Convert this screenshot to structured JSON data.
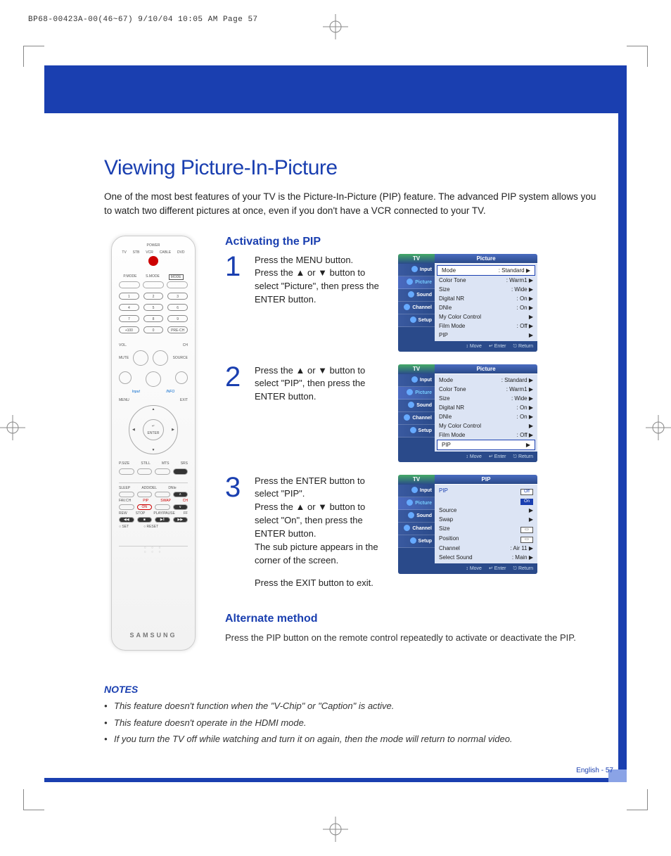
{
  "header_line": "BP68-00423A-00(46~67)  9/10/04  10:05 AM  Page 57",
  "title": "Viewing Picture-In-Picture",
  "intro": "One of the most best features of your TV is the Picture-In-Picture (PIP) feature. The advanced PIP system allows you to watch two different pictures at once, even if you don't have a VCR connected to your TV.",
  "section1_title": "Activating the PIP",
  "steps": [
    {
      "n": "1",
      "text": "Press the MENU button.\nPress the ▲ or ▼ button to select \"Picture\", then press the ENTER button."
    },
    {
      "n": "2",
      "text": "Press the ▲ or ▼ button to select \"PIP\", then press the ENTER button."
    },
    {
      "n": "3",
      "text": "Press the ENTER button to select \"PIP\".\nPress the ▲ or ▼ button to select \"On\", then press the ENTER button.\nThe sub picture appears in the corner of the screen.",
      "exit": "Press the EXIT button to exit."
    }
  ],
  "section2_title": "Alternate method",
  "alt_text": "Press the PIP button on the remote control repeatedly to activate or deactivate the PIP.",
  "notes_title": "NOTES",
  "notes": [
    "This feature doesn't function when the \"V-Chip\" or \"Caption\" is active.",
    "This feature doesn't operate in the HDMI mode.",
    "If you turn the TV off while watching and turn it on again, then the mode will return to normal video."
  ],
  "page_num": "English - 57",
  "osd_tabs": [
    "Input",
    "Picture",
    "Sound",
    "Channel",
    "Setup"
  ],
  "osd_foot": {
    "move": "Move",
    "enter": "Enter",
    "return": "Return"
  },
  "osd1": {
    "tv": "TV",
    "title": "Picture",
    "active_tab_index": 1,
    "items": [
      {
        "label": "Mode",
        "value": ": Standard",
        "sel": true
      },
      {
        "label": "Color Tone",
        "value": ": Warm1"
      },
      {
        "label": "Size",
        "value": ": Wide"
      },
      {
        "label": "Digital NR",
        "value": ": On"
      },
      {
        "label": "DNIe",
        "value": ": On"
      },
      {
        "label": "My Color Control",
        "value": ""
      },
      {
        "label": "Film Mode",
        "value": ": Off"
      },
      {
        "label": "PIP",
        "value": ""
      }
    ]
  },
  "osd2": {
    "tv": "TV",
    "title": "Picture",
    "active_tab_index": 1,
    "items": [
      {
        "label": "Mode",
        "value": ": Standard"
      },
      {
        "label": "Color Tone",
        "value": ": Warm1"
      },
      {
        "label": "Size",
        "value": ": Wide"
      },
      {
        "label": "Digital NR",
        "value": ": On"
      },
      {
        "label": "DNIe",
        "value": ": On"
      },
      {
        "label": "My Color Control",
        "value": ""
      },
      {
        "label": "Film Mode",
        "value": ": Off"
      },
      {
        "label": "PIP",
        "value": "",
        "sel": true
      }
    ]
  },
  "osd3": {
    "tv": "TV",
    "title": "PIP",
    "active_tab_index": 1,
    "items": [
      {
        "label": "PIP",
        "value": "",
        "blue": true,
        "box": "Off"
      },
      {
        "label": "",
        "value": "",
        "box": "On",
        "box_on": true
      },
      {
        "label": "Source",
        "value": ""
      },
      {
        "label": "Swap",
        "value": ""
      },
      {
        "label": "Size",
        "value": "",
        "box": "▭"
      },
      {
        "label": "Position",
        "value": "",
        "box": "▭"
      },
      {
        "label": "Channel",
        "value": ": Air 11"
      },
      {
        "label": "Select Sound",
        "value": ": Main"
      }
    ]
  },
  "remote_brand": "SAMSUNG",
  "remote_labels": {
    "power": "POWER",
    "tv": "TV",
    "stb": "STB",
    "vcr": "VCR",
    "cable": "CABLE",
    "dvd": "DVD",
    "pmode": "P.MODE",
    "smode": "S.MODE",
    "mode": "MODE",
    "plus100": "+100",
    "preCh": "PRE-CH",
    "vol": "VOL.",
    "ch": "CH",
    "mute": "MUTE",
    "source": "SOURCE",
    "info": "INFO",
    "menu": "MENU",
    "exit": "EXIT",
    "enter": "ENTER",
    "psize": "P.SIZE",
    "still": "STILL",
    "mts": "MTS",
    "srs": "SRS",
    "sleep": "SLEEP",
    "adddel": "ADD/DEL",
    "dnie": "DNIe",
    "favch": "FAV.CH",
    "pip": "PIP",
    "swap": "SWAP",
    "ch2": "CH",
    "rew": "REW",
    "stop": "STOP",
    "play": "PLAY/PAUSE",
    "ff": "FF",
    "set": "SET",
    "reset": "RESET"
  },
  "colors": {
    "brand_blue": "#1a3fb0",
    "frame_blue": "#1a3fb0",
    "page_tab_blue": "#8aa3e6",
    "osd_bg": "#2a4a8a",
    "osd_list_bg": "#dce4f4"
  }
}
